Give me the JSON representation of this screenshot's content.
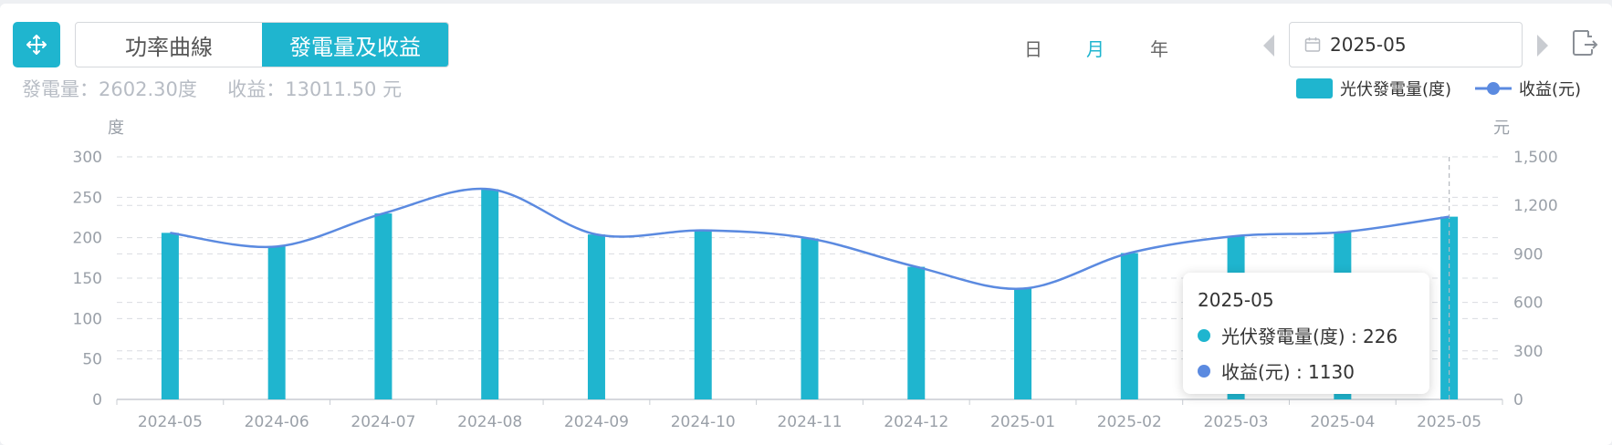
{
  "toolbar": {
    "tabs": [
      {
        "label": "功率曲線",
        "active": false
      },
      {
        "label": "發電量及收益",
        "active": true
      }
    ],
    "periods": [
      {
        "label": "日",
        "active": false
      },
      {
        "label": "月",
        "active": true
      },
      {
        "label": "年",
        "active": false
      }
    ],
    "date_value": "2025-05"
  },
  "summary": {
    "text": "發電量：2602.30度     收益：13011.50 元"
  },
  "colors": {
    "accent": "#1fb5cf",
    "line": "#5b8ae0",
    "axis_text": "#9aa0a8",
    "grid": "#d9dce1"
  },
  "chart_data": {
    "type": "bar",
    "categories": [
      "2024-05",
      "2024-06",
      "2024-07",
      "2024-08",
      "2024-09",
      "2024-10",
      "2024-11",
      "2024-12",
      "2025-01",
      "2025-02",
      "2025-03",
      "2025-04",
      "2025-05"
    ],
    "series": [
      {
        "name": "光伏發電量(度)",
        "type": "bar",
        "axis": "left",
        "values": [
          206,
          189,
          230,
          260,
          204,
          209,
          199,
          164,
          137,
          181,
          202,
          207,
          226
        ]
      },
      {
        "name": "收益(元)",
        "type": "line",
        "axis": "right",
        "values": [
          1030,
          945,
          1150,
          1300,
          1020,
          1045,
          995,
          820,
          685,
          905,
          1010,
          1035,
          1130
        ]
      }
    ],
    "y_left": {
      "unit": "度",
      "min": 0,
      "max": 300,
      "ticks": [
        0,
        50,
        100,
        150,
        200,
        250,
        300
      ]
    },
    "y_right": {
      "unit": "元",
      "min": 0,
      "max": 1500,
      "ticks": [
        0,
        300,
        600,
        900,
        1200,
        1500
      ],
      "tick_labels": [
        "0",
        "300",
        "600",
        "900",
        "1,200",
        "1,500"
      ]
    },
    "grid": true,
    "legend_position": "top-right",
    "tooltip": {
      "title": "2025-05",
      "rows": [
        {
          "label": "光伏發電量(度) : 226"
        },
        {
          "label": "收益(元) : 1130"
        }
      ]
    }
  }
}
